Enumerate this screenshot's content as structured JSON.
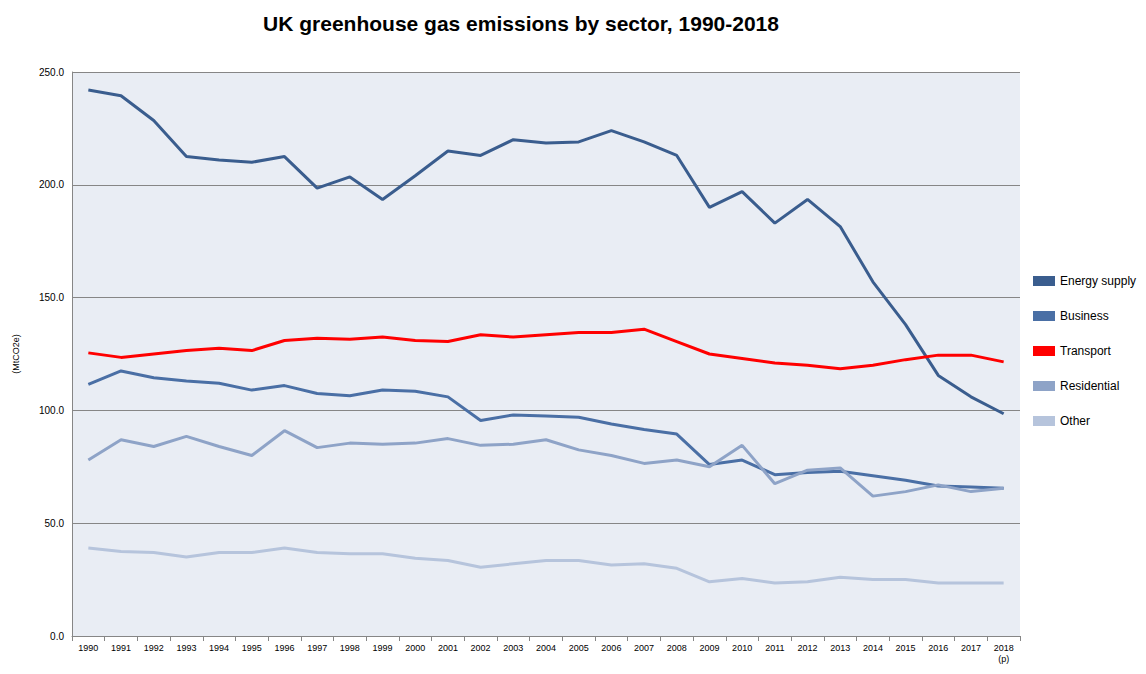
{
  "chart_data": {
    "type": "line",
    "title": "UK greenhouse gas emissions by sector, 1990-2018",
    "y_label": "(MtCO2e)",
    "categories": [
      "1990",
      "1991",
      "1992",
      "1993",
      "1994",
      "1995",
      "1996",
      "1997",
      "1998",
      "1999",
      "2000",
      "2001",
      "2002",
      "2003",
      "2004",
      "2005",
      "2006",
      "2007",
      "2008",
      "2009",
      "2010",
      "2011",
      "2012",
      "2013",
      "2014",
      "2015",
      "2016",
      "2017",
      "2018\n(p)"
    ],
    "series": [
      {
        "name": "Energy supply",
        "color": "#3a5d8e",
        "values": [
          242,
          239.5,
          228.5,
          212.5,
          211,
          210,
          212.5,
          198.5,
          203.5,
          193.5,
          204,
          215,
          213,
          220,
          218.5,
          219,
          224,
          219,
          213,
          190,
          197,
          183,
          193.5,
          181.5,
          157,
          138,
          115.5,
          106,
          98.5
        ]
      },
      {
        "name": "Business",
        "color": "#4a6fa5",
        "values": [
          111.5,
          117.5,
          114.5,
          113,
          112,
          109,
          111,
          107.5,
          106.5,
          109,
          108.5,
          106,
          95.5,
          98,
          97.5,
          97,
          94,
          91.5,
          89.5,
          76,
          78,
          71.5,
          72.5,
          73,
          71,
          69,
          66.5,
          66,
          65.5
        ]
      },
      {
        "name": "Transport",
        "color": "#ff0000",
        "values": [
          125.5,
          123.5,
          125,
          126.5,
          127.5,
          126.5,
          131,
          132,
          131.5,
          132.5,
          131,
          130.5,
          133.5,
          132.5,
          133.5,
          134.5,
          134.5,
          136,
          130.5,
          125,
          123,
          121,
          120,
          118.5,
          120,
          122.5,
          124.5,
          124.5,
          121.5
        ]
      },
      {
        "name": "Residential",
        "color": "#8ea3c7",
        "values": [
          78,
          87,
          84,
          88.5,
          84,
          80,
          91,
          83.5,
          85.5,
          85,
          85.5,
          87.5,
          84.5,
          85,
          87,
          82.5,
          80,
          76.5,
          78,
          75,
          84.5,
          67.5,
          73.5,
          74.5,
          62,
          64,
          67,
          64,
          65.5
        ]
      },
      {
        "name": "Other",
        "color": "#b6c4dc",
        "values": [
          39,
          37.5,
          37,
          35,
          37,
          37,
          39,
          37,
          36.5,
          36.5,
          34.5,
          33.5,
          30.5,
          32,
          33.5,
          33.5,
          31.5,
          32,
          30,
          24,
          25.5,
          23.5,
          24,
          26,
          25,
          25,
          23.5,
          23.5,
          23.5
        ]
      }
    ],
    "ylim": [
      0,
      250
    ],
    "yticks": [
      {
        "value": 0,
        "label": "0.0"
      },
      {
        "value": 50,
        "label": "50.0"
      },
      {
        "value": 100,
        "label": "100.0"
      },
      {
        "value": 150,
        "label": "150.0"
      },
      {
        "value": 200,
        "label": "200.0"
      },
      {
        "value": 250,
        "label": "250.0"
      }
    ],
    "grid": true,
    "legend": "right",
    "marker": "none"
  }
}
